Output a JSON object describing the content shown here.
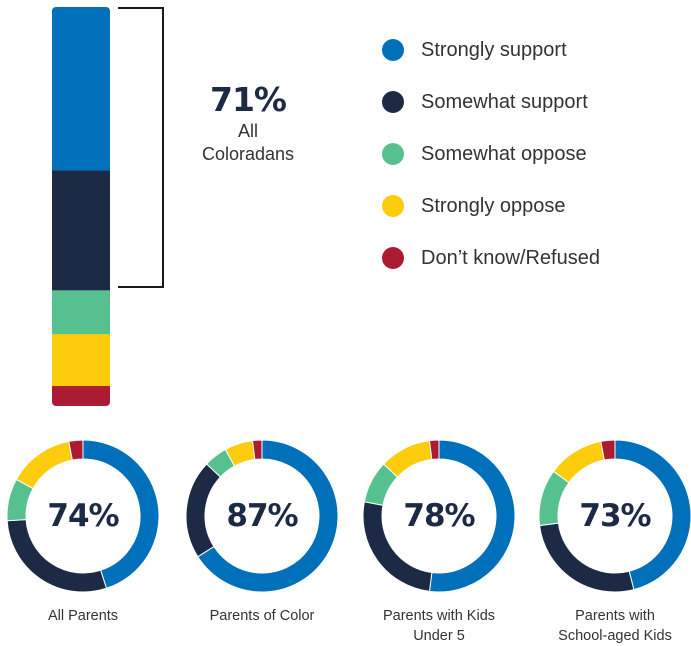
{
  "colors": {
    "strongly_support": "#0070bb",
    "somewhat_support": "#1c2a45",
    "somewhat_oppose": "#56c08e",
    "strongly_oppose": "#fdcd0d",
    "dont_know": "#ab1c33"
  },
  "legend": [
    {
      "label": "Strongly support",
      "color": "#0070bb"
    },
    {
      "label": "Somewhat support",
      "color": "#1c2a45"
    },
    {
      "label": "Somewhat oppose",
      "color": "#56c08e"
    },
    {
      "label": "Strongly oppose",
      "color": "#fdcd0d"
    },
    {
      "label": "Don’t know/Refused",
      "color": "#ab1c33"
    }
  ],
  "callout": {
    "value": "71%",
    "label_line1": "All",
    "label_line2": "Coloradans"
  },
  "chart_data": [
    {
      "type": "bar",
      "stacked": true,
      "categories": [
        "All Coloradans"
      ],
      "series": [
        {
          "name": "Strongly support",
          "values": [
            41
          ]
        },
        {
          "name": "Somewhat support",
          "values": [
            30
          ]
        },
        {
          "name": "Somewhat oppose",
          "values": [
            11
          ]
        },
        {
          "name": "Strongly oppose",
          "values": [
            13
          ]
        },
        {
          "name": "Don’t know/Refused",
          "values": [
            5
          ]
        }
      ]
    },
    {
      "type": "pie",
      "donut": true,
      "groups": [
        {
          "label_lines": [
            "All Parents"
          ],
          "center": "74%",
          "values": [
            45,
            29,
            9,
            14,
            3
          ]
        },
        {
          "label_lines": [
            "Parents of Color"
          ],
          "center": "87%",
          "values": [
            66,
            21,
            5,
            6,
            2
          ]
        },
        {
          "label_lines": [
            "Parents with Kids",
            "Under 5"
          ],
          "center": "78%",
          "values": [
            52,
            26,
            9,
            11,
            2
          ]
        },
        {
          "label_lines": [
            "Parents with",
            "School-aged Kids"
          ],
          "center": "73%",
          "values": [
            46,
            27,
            12,
            12,
            3
          ]
        }
      ],
      "slice_names": [
        "Strongly support",
        "Somewhat support",
        "Somewhat oppose",
        "Strongly oppose",
        "Don’t know/Refused"
      ]
    }
  ]
}
